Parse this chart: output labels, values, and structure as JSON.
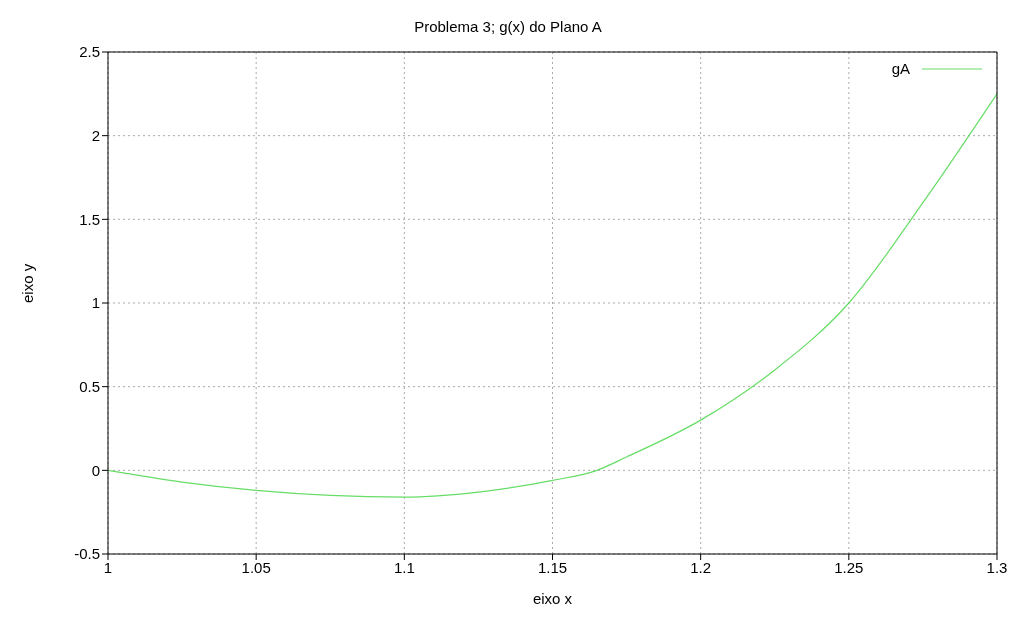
{
  "chart_data": {
    "type": "line",
    "title": "Problema 3; g(x) do Plano A",
    "xlabel": "eixo x",
    "ylabel": "eixo y",
    "x": [
      1,
      1.025,
      1.05,
      1.075,
      1.1,
      1.125,
      1.15,
      1.165,
      1.175,
      1.2,
      1.225,
      1.25,
      1.275,
      1.3
    ],
    "series": [
      {
        "name": "gA",
        "color": "#66dd66",
        "values": [
          0,
          -0.07,
          -0.12,
          -0.15,
          -0.16,
          -0.13,
          -0.06,
          0,
          0.08,
          0.3,
          0.6,
          1.0,
          1.6,
          2.25
        ]
      }
    ],
    "xlim": [
      1,
      1.3
    ],
    "xticks": [
      1,
      1.05,
      1.1,
      1.15,
      1.2,
      1.25,
      1.3
    ],
    "ylim": [
      -0.5,
      2.5
    ],
    "yticks": [
      -0.5,
      0,
      0.5,
      1,
      1.5,
      2,
      2.5
    ],
    "grid": true,
    "legend": "top right",
    "marker": "none",
    "line_style": "solid"
  }
}
